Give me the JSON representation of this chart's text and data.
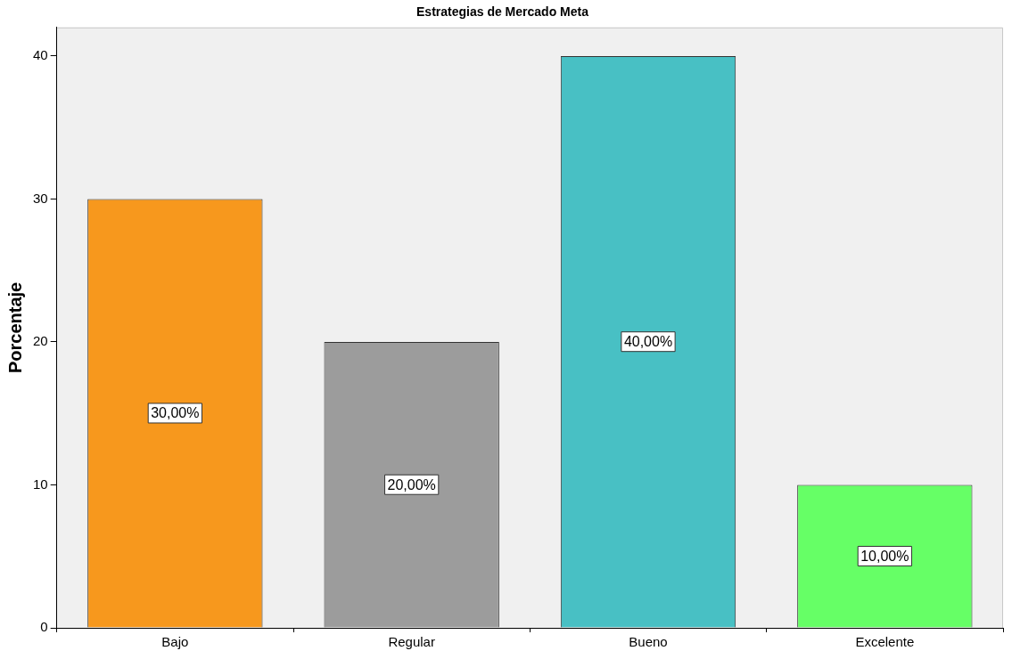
{
  "chart_data": {
    "type": "bar",
    "title": "Estrategias de Mercado Meta",
    "ylabel": "Porcentaje",
    "categories": [
      "Bajo",
      "Regular",
      "Bueno",
      "Excelente"
    ],
    "values": [
      30,
      20,
      40,
      10
    ],
    "colors": [
      "#f7981d",
      "#9c9c9c",
      "#48c0c4",
      "#66ff66"
    ],
    "value_labels": [
      "30,00%",
      "20,00%",
      "40,00%",
      "10,00%"
    ],
    "ylim": [
      0,
      42
    ],
    "yticks": [
      0,
      10,
      20,
      30,
      40
    ]
  }
}
